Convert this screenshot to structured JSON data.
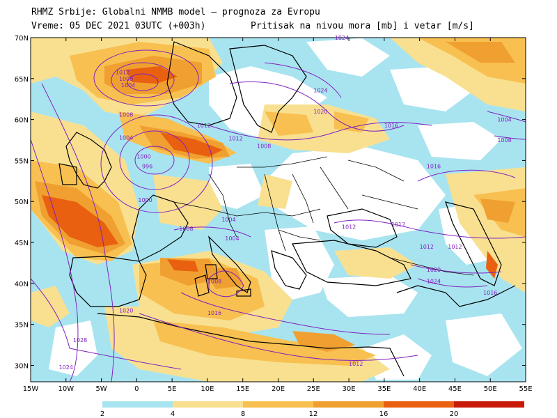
{
  "header": {
    "line1": "RHMZ Srbije: Globalni NMMB model — prognoza za Evropu",
    "line2_left": "Vreme: 05 DEC 2021 03UTC (+003h)",
    "line2_right": "Pritisak na nivou mora [mb] i vetar [m/s]"
  },
  "axes": {
    "lon_labels": [
      "15W",
      "10W",
      "5W",
      "0",
      "5E",
      "10E",
      "15E",
      "20E",
      "25E",
      "30E",
      "35E",
      "40E",
      "45E",
      "50E",
      "55E"
    ],
    "lat_labels": [
      "70N",
      "65N",
      "60N",
      "55N",
      "50N",
      "45N",
      "40N",
      "35N",
      "30N"
    ]
  },
  "colorbar": {
    "labels": [
      "2",
      "4",
      "8",
      "12",
      "16",
      "20"
    ],
    "colors": [
      "#a8e4f0",
      "#f8e090",
      "#f8c050",
      "#f0a030",
      "#e86010",
      "#c81808"
    ]
  },
  "isobar_labels": [
    {
      "text": "1012",
      "lon": -2,
      "lat": 65.8
    },
    {
      "text": "1008",
      "lon": -1.5,
      "lat": 65.0
    },
    {
      "text": "1004",
      "lon": -1.2,
      "lat": 64.2
    },
    {
      "text": "1008",
      "lon": -1.5,
      "lat": 60.6
    },
    {
      "text": "1004",
      "lon": -1.5,
      "lat": 57.8
    },
    {
      "text": "1000",
      "lon": 1.0,
      "lat": 55.5
    },
    {
      "text": "996",
      "lon": 1.5,
      "lat": 54.3
    },
    {
      "text": "1000",
      "lon": 1.2,
      "lat": 50.2
    },
    {
      "text": "1012",
      "lon": 9.5,
      "lat": 59.3
    },
    {
      "text": "1012",
      "lon": 14,
      "lat": 57.7
    },
    {
      "text": "1008",
      "lon": 18,
      "lat": 56.8
    },
    {
      "text": "1024",
      "lon": 26,
      "lat": 63.6
    },
    {
      "text": "1020",
      "lon": 26,
      "lat": 61.0
    },
    {
      "text": "1016",
      "lon": 36,
      "lat": 59.3
    },
    {
      "text": "1004",
      "lon": 52,
      "lat": 60.0
    },
    {
      "text": "1008",
      "lon": 52,
      "lat": 57.5
    },
    {
      "text": "1016",
      "lon": 42,
      "lat": 54.3
    },
    {
      "text": "1008",
      "lon": 7,
      "lat": 46.7
    },
    {
      "text": "1004",
      "lon": 13,
      "lat": 47.8
    },
    {
      "text": "1004",
      "lon": 13.5,
      "lat": 45.5
    },
    {
      "text": "1012",
      "lon": 30,
      "lat": 46.9
    },
    {
      "text": "1012",
      "lon": 37,
      "lat": 47.2
    },
    {
      "text": "1012",
      "lon": 41,
      "lat": 44.5
    },
    {
      "text": "1012",
      "lon": 45,
      "lat": 44.5
    },
    {
      "text": "1020",
      "lon": 42,
      "lat": 41.7
    },
    {
      "text": "1024",
      "lon": 42,
      "lat": 40.3
    },
    {
      "text": "1016",
      "lon": 50,
      "lat": 38.9
    },
    {
      "text": "1008",
      "lon": 11,
      "lat": 40.3
    },
    {
      "text": "1016",
      "lon": 11,
      "lat": 36.4
    },
    {
      "text": "1020",
      "lon": -1.5,
      "lat": 36.7
    },
    {
      "text": "1028",
      "lon": -8,
      "lat": 33.1
    },
    {
      "text": "1024",
      "lon": -10,
      "lat": 29.8
    },
    {
      "text": "1012",
      "lon": 31,
      "lat": 30.2
    },
    {
      "text": "1024",
      "lon": 29,
      "lat": 70.0
    }
  ]
}
